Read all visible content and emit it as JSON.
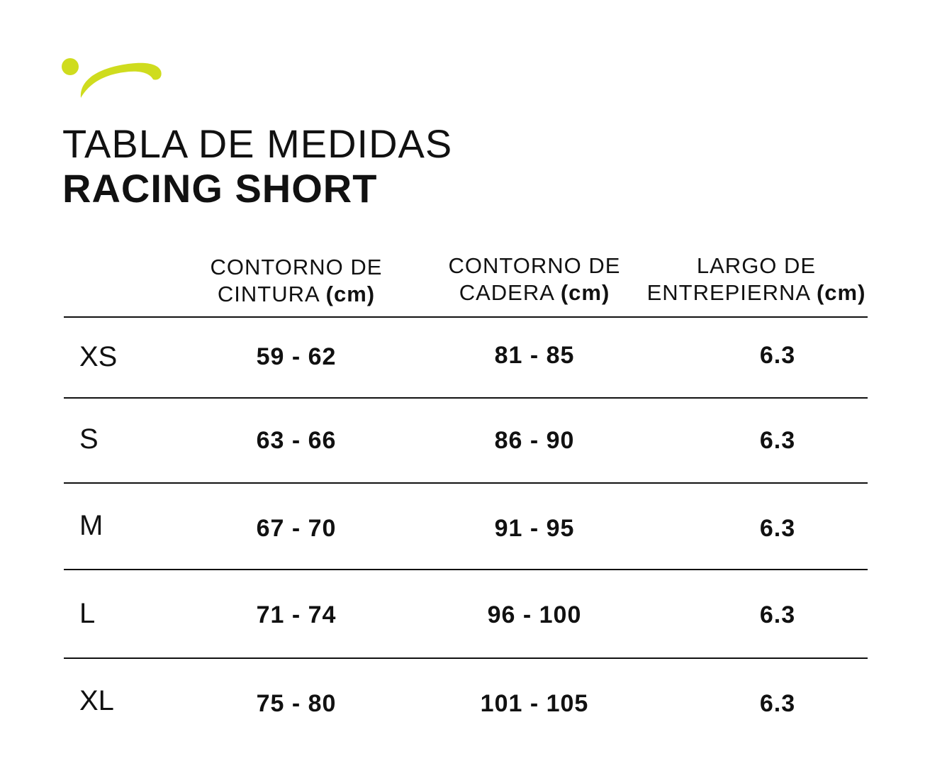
{
  "brand": {
    "accent_color": "#cfdc1e",
    "logo_icon": "swoosh-logo-icon"
  },
  "heading": {
    "title": "TABLA DE MEDIDAS",
    "subtitle": "RACING SHORT"
  },
  "table": {
    "columns": [
      {
        "line1": "CONTORNO DE",
        "line2": "CINTURA",
        "unit": "(cm)"
      },
      {
        "line1": "CONTORNO DE",
        "line2": "CADERA",
        "unit": "(cm)"
      },
      {
        "line1": "LARGO DE",
        "line2": "ENTREPIERNA",
        "unit": "(cm)"
      }
    ],
    "rows": [
      {
        "size": "XS",
        "waist": "59 - 62",
        "hip": "81 - 85",
        "inseam": "6.3"
      },
      {
        "size": "S",
        "waist": "63 - 66",
        "hip": "86 - 90",
        "inseam": "6.3"
      },
      {
        "size": "M",
        "waist": "67 - 70",
        "hip": "91 - 95",
        "inseam": "6.3"
      },
      {
        "size": "L",
        "waist": "71 - 74",
        "hip": "96 - 100",
        "inseam": "6.3"
      },
      {
        "size": "XL",
        "waist": "75 - 80",
        "hip": "101 - 105",
        "inseam": "6.3"
      }
    ]
  }
}
